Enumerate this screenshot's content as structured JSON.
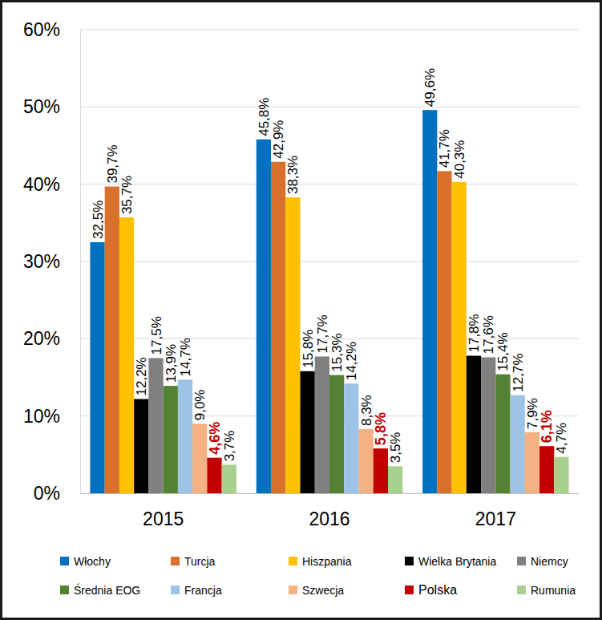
{
  "chart_data": {
    "type": "bar",
    "categories": [
      "2015",
      "2016",
      "2017"
    ],
    "series": [
      {
        "name": "Włochy",
        "color": "#0070c0",
        "values": [
          32.5,
          45.8,
          49.6
        ],
        "value_labels": [
          "32,5%",
          "45,8%",
          "49,6%"
        ]
      },
      {
        "name": "Turcja",
        "color": "#d9702b",
        "values": [
          39.7,
          42.9,
          41.7
        ],
        "value_labels": [
          "39,7%",
          "42,9%",
          "41,7%"
        ]
      },
      {
        "name": "Hiszpania",
        "color": "#ffc000",
        "values": [
          35.7,
          38.3,
          40.3
        ],
        "value_labels": [
          "35,7%",
          "38,3%",
          "40,3%"
        ]
      },
      {
        "name": "Wielka Brytania",
        "color": "#000000",
        "values": [
          12.2,
          15.8,
          17.8
        ],
        "value_labels": [
          "12,2%",
          "15,8%",
          "17,8%"
        ]
      },
      {
        "name": "Niemcy",
        "color": "#808080",
        "values": [
          17.5,
          17.7,
          17.6
        ],
        "value_labels": [
          "17,5%",
          "17,7%",
          "17,6%"
        ]
      },
      {
        "name": "Średnia EOG",
        "color": "#548235",
        "values": [
          13.9,
          15.3,
          15.4
        ],
        "value_labels": [
          "13,9%",
          "15,3%",
          "15,4%"
        ]
      },
      {
        "name": "Francja",
        "color": "#9dc3e6",
        "values": [
          14.7,
          14.2,
          12.7
        ],
        "value_labels": [
          "14,7%",
          "14,2%",
          "12,7%"
        ]
      },
      {
        "name": "Szwecja",
        "color": "#f4b183",
        "values": [
          9.0,
          8.3,
          7.9
        ],
        "value_labels": [
          "9,0%",
          "8,3%",
          "7,9%"
        ]
      },
      {
        "name": "Polska",
        "color": "#c00000",
        "values": [
          4.6,
          5.8,
          6.1
        ],
        "value_labels": [
          "4,6%",
          "5,8%",
          "6,1%"
        ]
      },
      {
        "name": "Rumunia",
        "color": "#a9d18e",
        "values": [
          3.7,
          3.5,
          4.7
        ],
        "value_labels": [
          "3,7%",
          "3,5%",
          "4,7%"
        ]
      }
    ],
    "ylim": [
      0,
      60
    ],
    "yticks": [
      {
        "value": 0,
        "label": "0%"
      },
      {
        "value": 10,
        "label": "10%"
      },
      {
        "value": 20,
        "label": "20%"
      },
      {
        "value": 30,
        "label": "30%"
      },
      {
        "value": 40,
        "label": "40%"
      },
      {
        "value": 50,
        "label": "50%"
      },
      {
        "value": 60,
        "label": "60%"
      }
    ],
    "grid": true,
    "data_labels": true,
    "legend": "bottom"
  }
}
